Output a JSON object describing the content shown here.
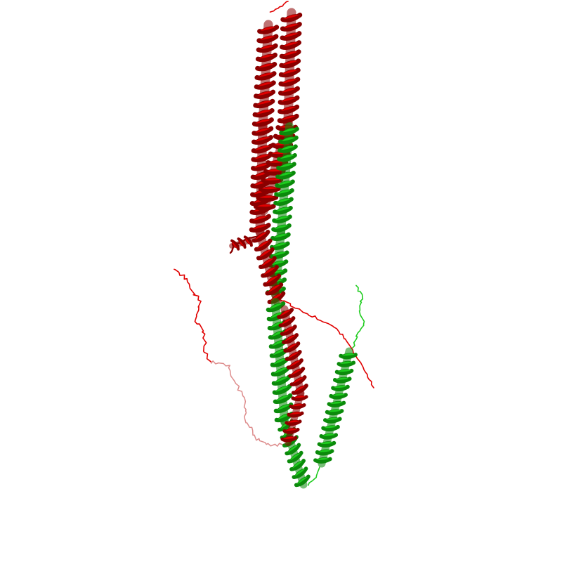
{
  "scene": {
    "type": "protein-cartoon-render",
    "background": "#ffffff",
    "chains": [
      {
        "name": "chain-red",
        "color": "#e00000",
        "dark": "#8a0000",
        "pale": "#d98080"
      },
      {
        "name": "chain-green",
        "color": "#1fcc1f",
        "dark": "#0b8a0b"
      }
    ]
  }
}
